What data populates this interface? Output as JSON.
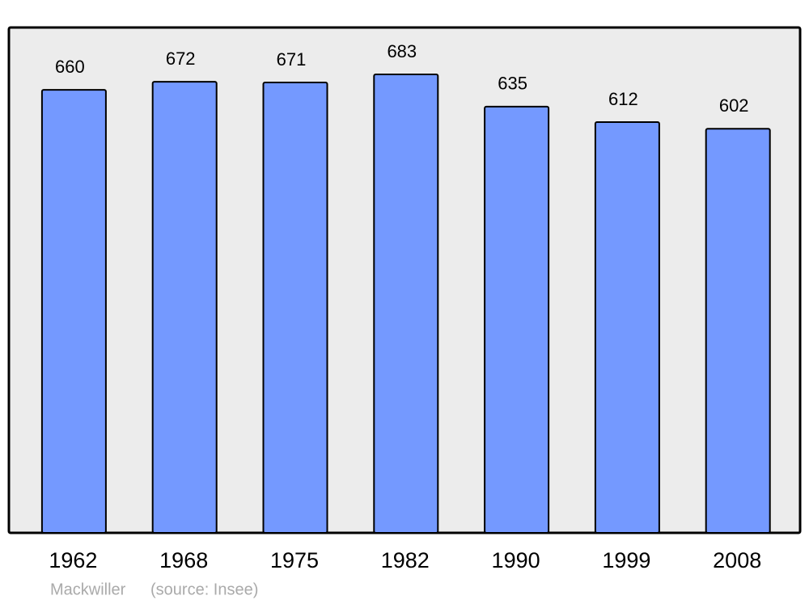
{
  "chart_data": {
    "type": "bar",
    "categories": [
      "1962",
      "1968",
      "1975",
      "1982",
      "1990",
      "1999",
      "2008"
    ],
    "values": [
      660,
      672,
      671,
      683,
      635,
      612,
      602
    ],
    "color": "#7499ff",
    "author": "Mackwiller",
    "source": "(source: Insee)"
  }
}
